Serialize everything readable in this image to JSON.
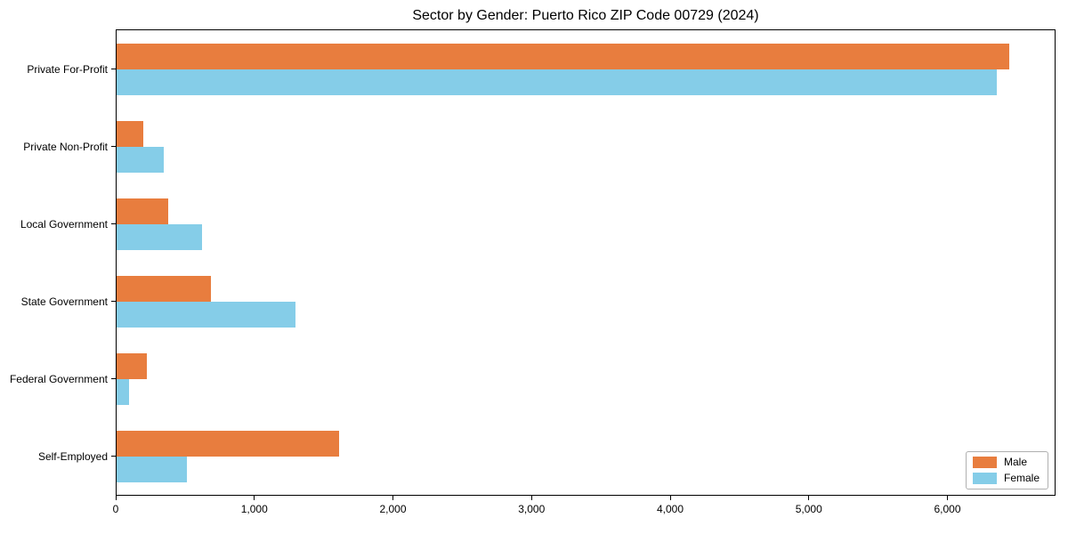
{
  "title": "Sector by Gender: Puerto Rico ZIP Code 00729 (2024)",
  "colors": {
    "male": "#e87d3e",
    "female": "#85cde8",
    "axis": "#000000",
    "background": "#ffffff",
    "legend_border": "#b0b0b0"
  },
  "chart_data": {
    "type": "bar",
    "orientation": "horizontal",
    "title": "Sector by Gender: Puerto Rico ZIP Code 00729 (2024)",
    "xlabel": "",
    "ylabel": "",
    "categories": [
      "Private For-Profit",
      "Private Non-Profit",
      "Local Government",
      "State Government",
      "Federal Government",
      "Self-Employed"
    ],
    "series": [
      {
        "name": "Male",
        "color": "#e87d3e",
        "values": [
          6455,
          190,
          370,
          680,
          220,
          1610
        ]
      },
      {
        "name": "Female",
        "color": "#85cde8",
        "values": [
          6360,
          340,
          620,
          1290,
          90,
          505
        ]
      }
    ],
    "xlim": [
      0,
      6780
    ],
    "xticks": [
      0,
      1000,
      2000,
      3000,
      4000,
      5000,
      6000
    ],
    "xtick_labels": [
      "0",
      "1,000",
      "2,000",
      "3,000",
      "4,000",
      "5,000",
      "6,000"
    ],
    "grid": false,
    "legend_position": "lower right"
  }
}
